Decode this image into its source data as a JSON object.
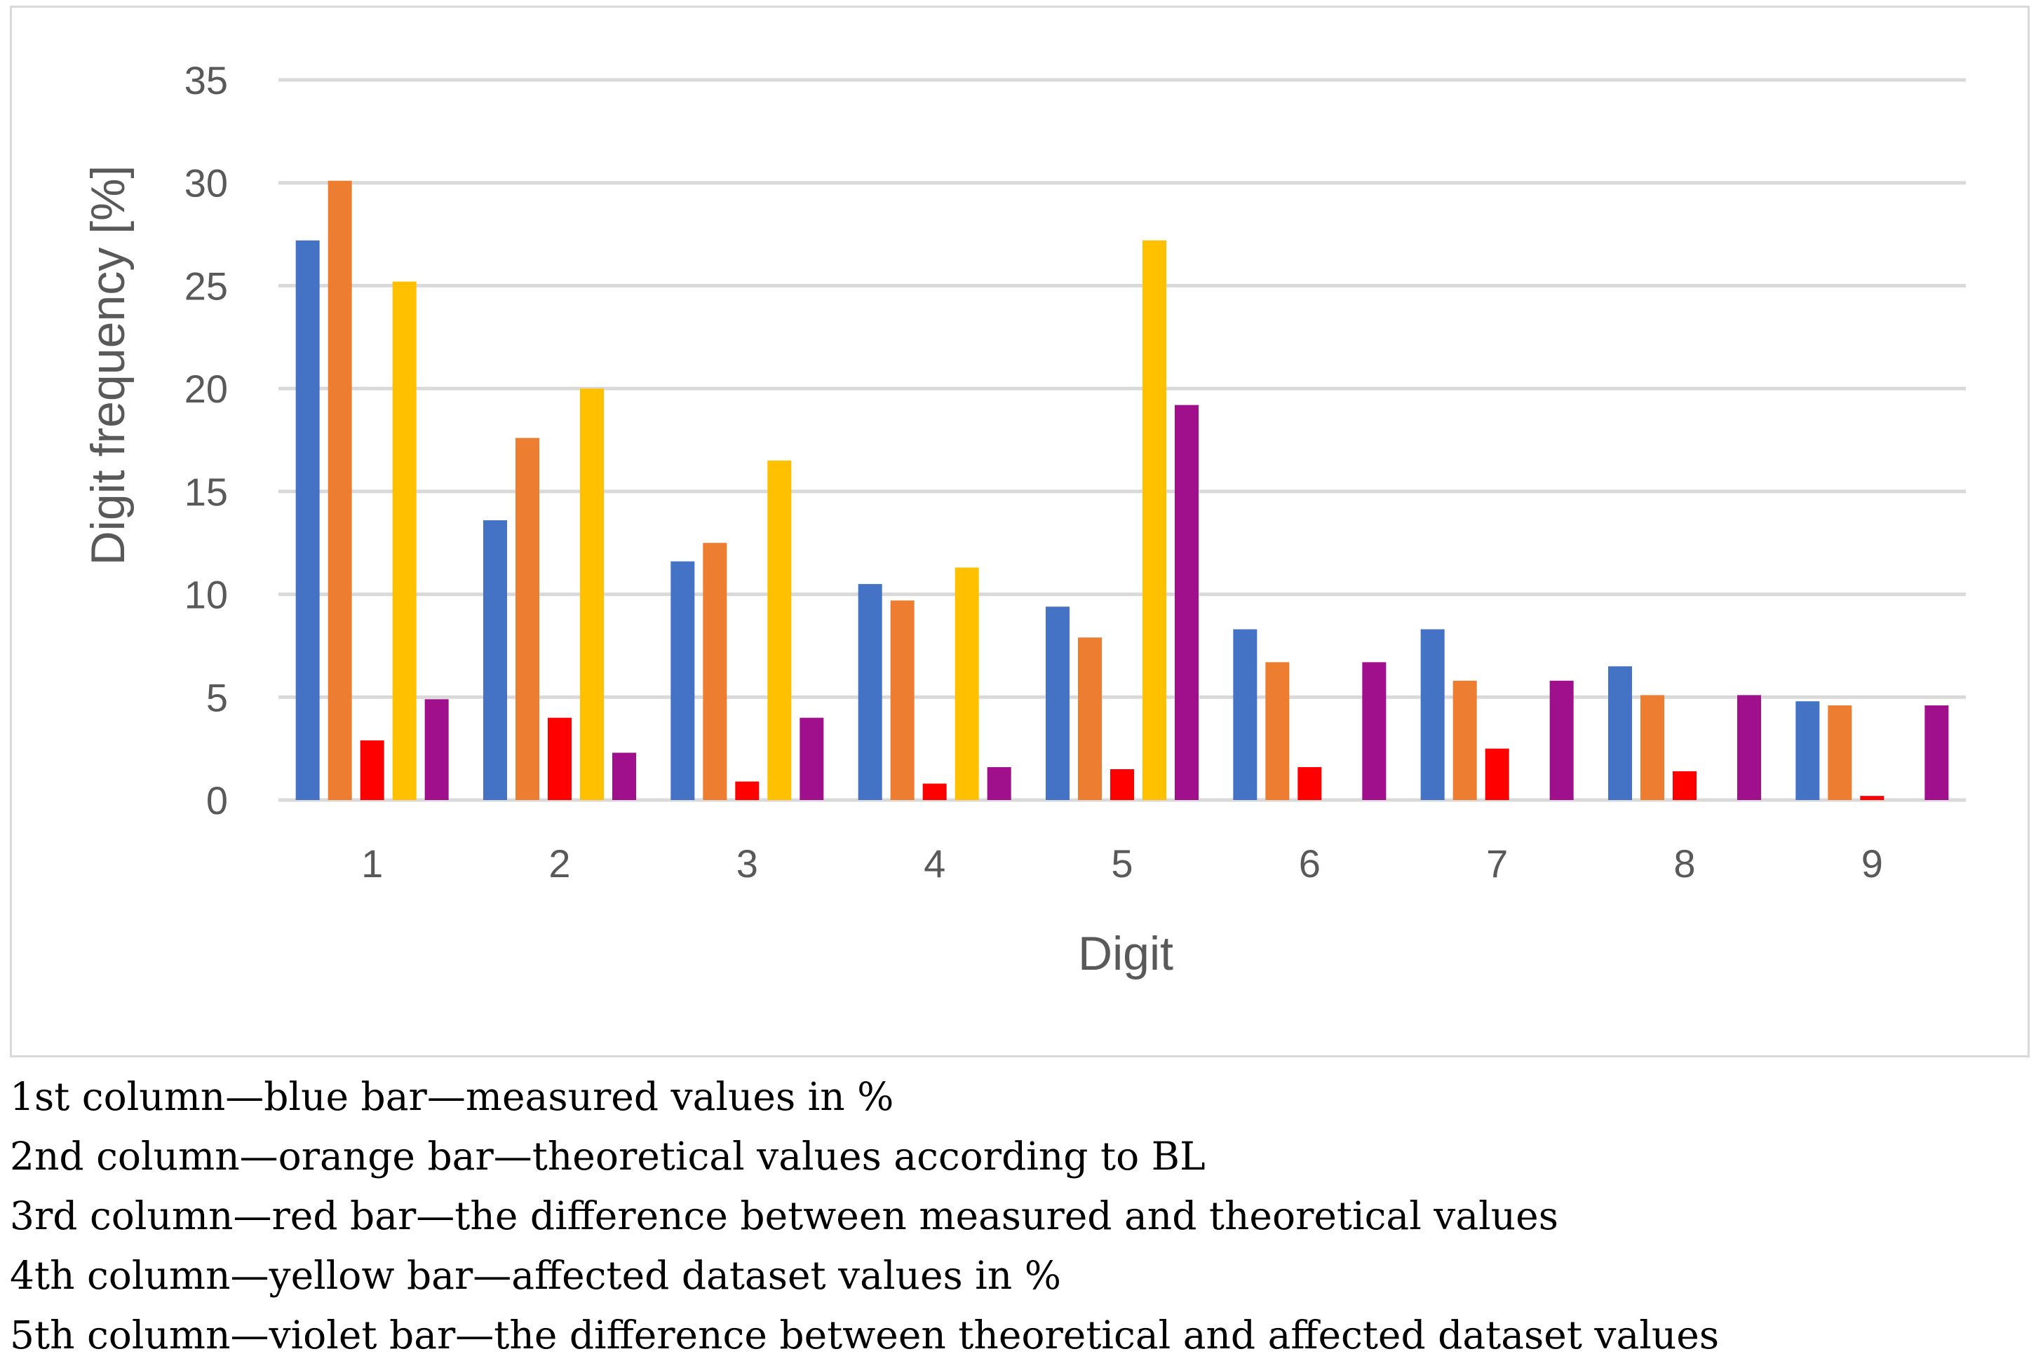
{
  "chart_data": {
    "type": "bar",
    "title": "",
    "xlabel": "Digit",
    "ylabel": "Digit frequency [%]",
    "categories": [
      "1",
      "2",
      "3",
      "4",
      "5",
      "6",
      "7",
      "8",
      "9"
    ],
    "ylim": [
      0,
      35
    ],
    "yticks": [
      "0",
      "5",
      "10",
      "15",
      "20",
      "25",
      "30",
      "35"
    ],
    "grid": true,
    "series": [
      {
        "name": "measured values in %",
        "color": "#4472c4",
        "values": [
          27.2,
          13.6,
          11.6,
          10.5,
          9.4,
          8.3,
          8.3,
          6.5,
          4.8
        ]
      },
      {
        "name": "theoretical values according to BL",
        "color": "#ed7d31",
        "values": [
          30.1,
          17.6,
          12.5,
          9.7,
          7.9,
          6.7,
          5.8,
          5.1,
          4.6
        ]
      },
      {
        "name": "the difference between measured and theoretical values",
        "color": "#ff0000",
        "values": [
          2.9,
          4.0,
          0.9,
          0.8,
          1.5,
          1.6,
          2.5,
          1.4,
          0.2
        ]
      },
      {
        "name": "affected dataset values in %",
        "color": "#ffc000",
        "values": [
          25.2,
          20.0,
          16.5,
          11.3,
          27.2,
          0,
          0,
          0,
          0
        ]
      },
      {
        "name": "the difference between theoretical and affected dataset values",
        "color": "#a0108c",
        "values": [
          4.9,
          2.3,
          4.0,
          1.6,
          19.2,
          6.7,
          5.8,
          5.1,
          4.6
        ]
      }
    ]
  },
  "captions": [
    "1st column—blue bar—measured values in %",
    "2nd column—orange bar—theoretical values according to BL",
    "3rd column—red bar—the difference between measured and theoretical values",
    "4th column—yellow bar—affected dataset values in %",
    "5th column—violet bar—the difference between theoretical and affected dataset values"
  ]
}
